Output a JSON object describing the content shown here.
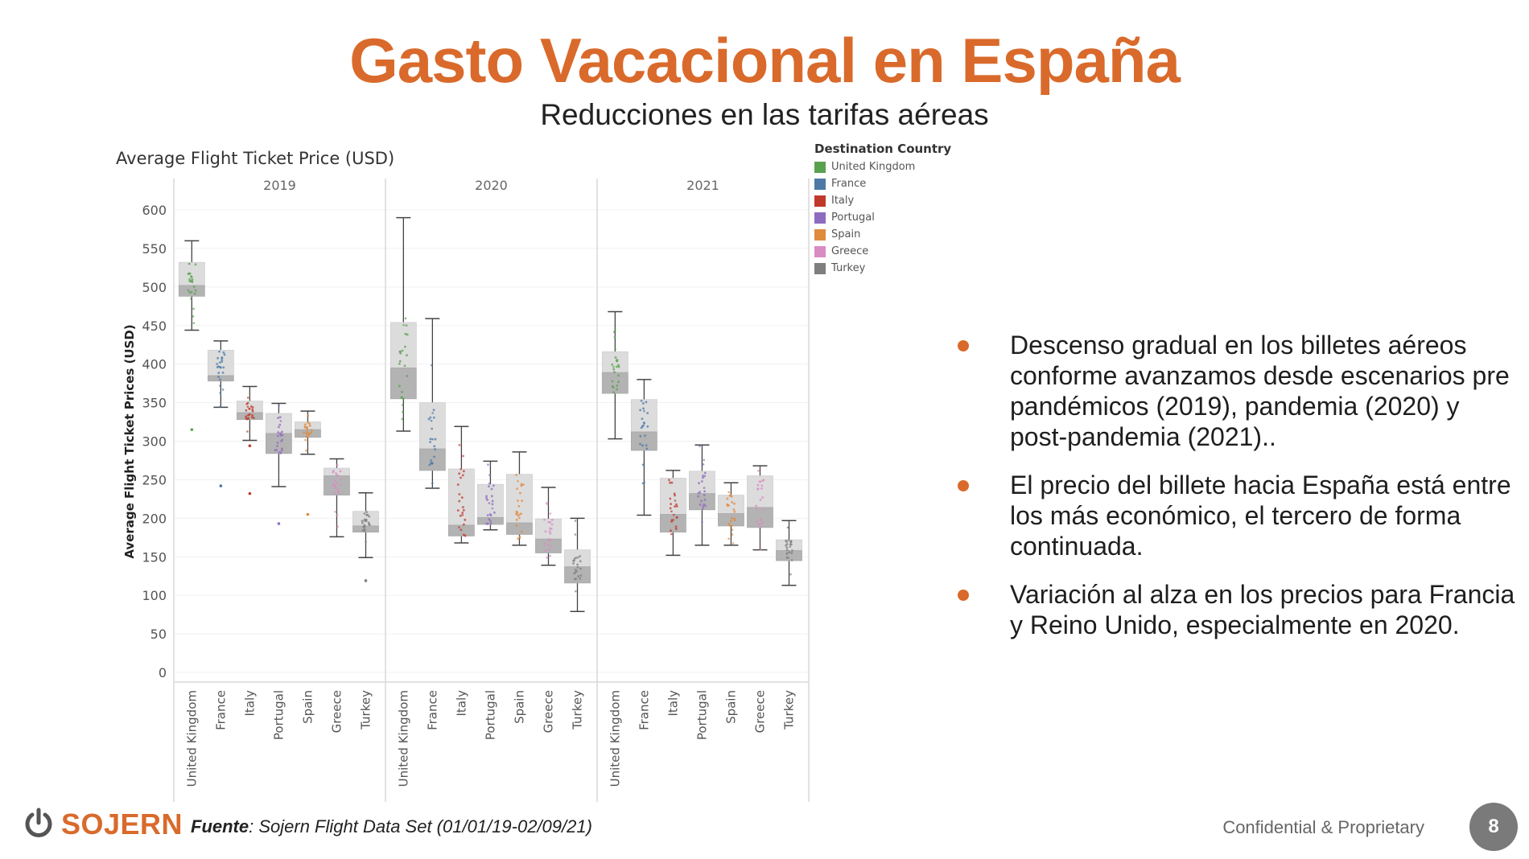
{
  "header": {
    "title": "Gasto Vacacional en España",
    "subtitle": "Reducciones en las tarifas aéreas"
  },
  "chart_data": {
    "type": "boxplot",
    "title": "Average Flight Ticket Price (USD)",
    "ylabel": "Average Flight Ticket Prices (USD)",
    "ylim": [
      0,
      600
    ],
    "yticks": [
      0,
      50,
      100,
      150,
      200,
      250,
      300,
      350,
      400,
      450,
      500,
      550,
      600
    ],
    "grid": true,
    "legend_title": "Destination Country",
    "legend_position": "right",
    "categories": [
      "United Kingdom",
      "France",
      "Italy",
      "Portugal",
      "Spain",
      "Greece",
      "Turkey"
    ],
    "colors": {
      "United Kingdom": "#59a14f",
      "France": "#4e79a7",
      "Italy": "#c0392b",
      "Portugal": "#8e6bbf",
      "Spain": "#e08a3c",
      "Greece": "#d98cc4",
      "Turkey": "#7f7f7f"
    },
    "panels": [
      {
        "year": "2019",
        "boxes": [
          {
            "category": "United Kingdom",
            "min": 444,
            "q1": 488,
            "median": 502,
            "q3": 532,
            "max": 560,
            "outliers": [
              315
            ]
          },
          {
            "category": "France",
            "min": 344,
            "q1": 378,
            "median": 385,
            "q3": 418,
            "max": 430,
            "outliers": [
              242
            ]
          },
          {
            "category": "Italy",
            "min": 301,
            "q1": 328,
            "median": 337,
            "q3": 352,
            "max": 371,
            "outliers": [
              232,
              294
            ]
          },
          {
            "category": "Portugal",
            "min": 241,
            "q1": 284,
            "median": 310,
            "q3": 336,
            "max": 349,
            "outliers": [
              193
            ]
          },
          {
            "category": "Spain",
            "min": 283,
            "q1": 305,
            "median": 315,
            "q3": 325,
            "max": 339,
            "outliers": [
              205
            ]
          },
          {
            "category": "Greece",
            "min": 176,
            "q1": 230,
            "median": 255,
            "q3": 265,
            "max": 277,
            "outliers": []
          },
          {
            "category": "Turkey",
            "min": 149,
            "q1": 182,
            "median": 190,
            "q3": 209,
            "max": 233,
            "outliers": [
              119
            ]
          }
        ]
      },
      {
        "year": "2020",
        "boxes": [
          {
            "category": "United Kingdom",
            "min": 313,
            "q1": 355,
            "median": 395,
            "q3": 454,
            "max": 590,
            "outliers": []
          },
          {
            "category": "France",
            "min": 239,
            "q1": 262,
            "median": 290,
            "q3": 350,
            "max": 459,
            "outliers": []
          },
          {
            "category": "Italy",
            "min": 168,
            "q1": 177,
            "median": 191,
            "q3": 264,
            "max": 319,
            "outliers": []
          },
          {
            "category": "Portugal",
            "min": 185,
            "q1": 192,
            "median": 201,
            "q3": 244,
            "max": 274,
            "outliers": []
          },
          {
            "category": "Spain",
            "min": 165,
            "q1": 179,
            "median": 194,
            "q3": 257,
            "max": 286,
            "outliers": []
          },
          {
            "category": "Greece",
            "min": 139,
            "q1": 155,
            "median": 173,
            "q3": 199,
            "max": 240,
            "outliers": []
          },
          {
            "category": "Turkey",
            "min": 79,
            "q1": 116,
            "median": 137,
            "q3": 159,
            "max": 200,
            "outliers": []
          }
        ]
      },
      {
        "year": "2021",
        "boxes": [
          {
            "category": "United Kingdom",
            "min": 303,
            "q1": 362,
            "median": 389,
            "q3": 416,
            "max": 468,
            "outliers": []
          },
          {
            "category": "France",
            "min": 204,
            "q1": 288,
            "median": 312,
            "q3": 354,
            "max": 380,
            "outliers": []
          },
          {
            "category": "Italy",
            "min": 152,
            "q1": 182,
            "median": 205,
            "q3": 252,
            "max": 262,
            "outliers": []
          },
          {
            "category": "Portugal",
            "min": 165,
            "q1": 211,
            "median": 232,
            "q3": 261,
            "max": 295,
            "outliers": []
          },
          {
            "category": "Spain",
            "min": 165,
            "q1": 190,
            "median": 206,
            "q3": 230,
            "max": 246,
            "outliers": []
          },
          {
            "category": "Greece",
            "min": 159,
            "q1": 188,
            "median": 214,
            "q3": 255,
            "max": 268,
            "outliers": []
          },
          {
            "category": "Turkey",
            "min": 113,
            "q1": 145,
            "median": 158,
            "q3": 172,
            "max": 197,
            "outliers": []
          }
        ]
      }
    ]
  },
  "bullets": [
    "Descenso gradual en los billetes aéreos conforme avanzamos desde escenarios pre pandémicos  (2019), pandemia (2020) y post-pandemia (2021)..",
    "El precio del billete hacia España está entre los más económico, el tercero de forma continuada.",
    "Variación al alza en los precios para Francia y Reino Unido, especialmente en 2020."
  ],
  "footer": {
    "logo_text": "SOJERN",
    "source_label": "Fuente",
    "source_text": ": Sojern Flight Data Set (01/01/19-02/09/21)",
    "confidential": "Confidential & Proprietary",
    "page_number": "8"
  }
}
